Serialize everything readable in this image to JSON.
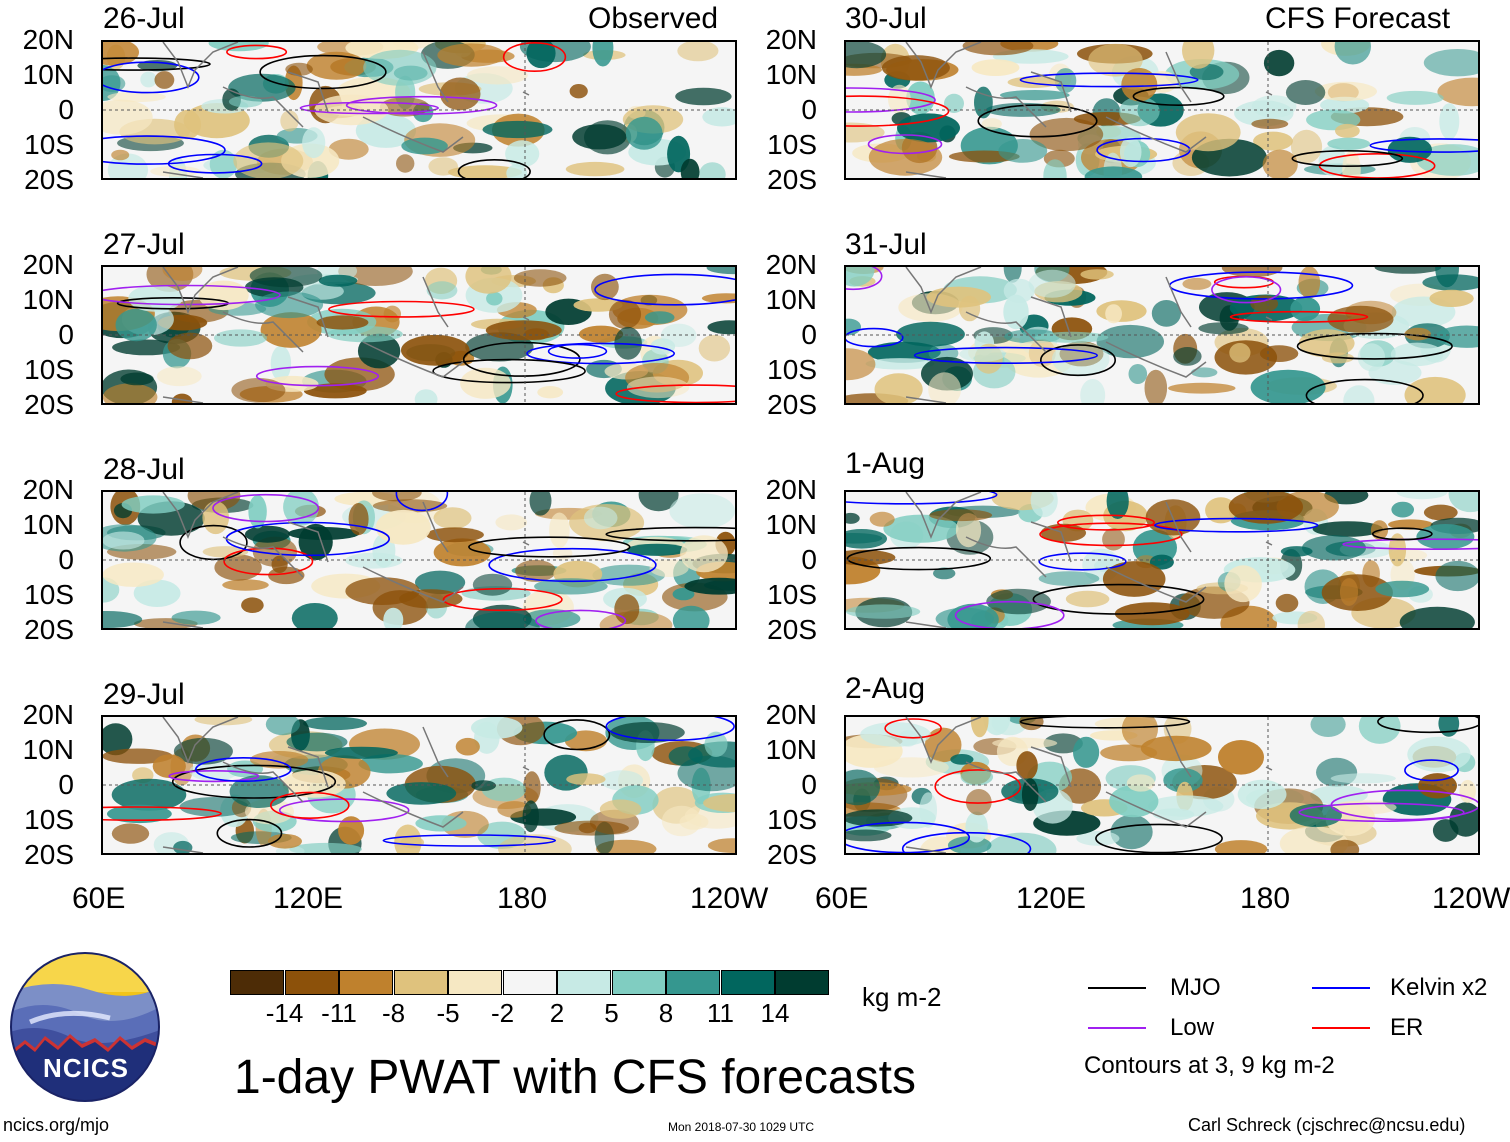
{
  "header": {
    "left_label": "Observed",
    "right_label": "CFS Forecast"
  },
  "panels": {
    "observed": [
      "26-Jul",
      "27-Jul",
      "28-Jul",
      "29-Jul"
    ],
    "forecast": [
      "30-Jul",
      "31-Jul",
      "1-Aug",
      "2-Aug"
    ]
  },
  "axes": {
    "lat_labels": [
      "20N",
      "10N",
      "0",
      "10S",
      "20S"
    ],
    "lon_labels": [
      "60E",
      "120E",
      "180",
      "120W"
    ],
    "lon_labels_right": [
      "60E",
      "120E",
      "180",
      "120W"
    ]
  },
  "colorbar": {
    "unit": "kg m-2",
    "ticks": [
      "-14",
      "-11",
      "-8",
      "-5",
      "-2",
      "2",
      "5",
      "8",
      "11",
      "14"
    ],
    "colors": [
      "#4d2c06",
      "#8c510a",
      "#bf812d",
      "#dfc27d",
      "#f6e8c3",
      "#f5f5f5",
      "#c7eae5",
      "#80cdc1",
      "#35978f",
      "#01665e",
      "#003c30"
    ]
  },
  "legend": {
    "items": [
      {
        "label": "MJO",
        "color": "#000000"
      },
      {
        "label": "Kelvin x2",
        "color": "#0000ff"
      },
      {
        "label": "Low",
        "color": "#a020f0"
      },
      {
        "label": "ER",
        "color": "#ff0000"
      }
    ],
    "note": "Contours at 3, 9 kg m-2"
  },
  "title": "1-day PWAT with CFS forecasts",
  "logo": {
    "text": "NCICS"
  },
  "footer": {
    "left": "ncics.org/mjo",
    "center": "Mon 2018-07-30 1029 UTC",
    "right": "Carl Schreck (cjschrec@ncsu.edu)"
  }
}
